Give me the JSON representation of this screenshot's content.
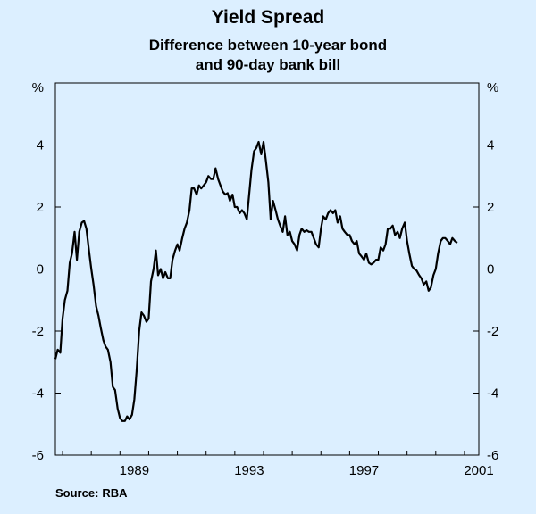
{
  "chart_data": {
    "type": "line",
    "title": "Yield Spread",
    "subtitle": "Difference between 10-year bond and 90-day bank bill",
    "y_unit_left": "%",
    "y_unit_right": "%",
    "ylim": [
      -6,
      6
    ],
    "y_ticks": [
      -6,
      -4,
      -2,
      0,
      2,
      4
    ],
    "xlim": [
      1986.75,
      2001.5
    ],
    "x_ticks": [
      1989,
      1993,
      1997,
      2001
    ],
    "x_tick_labels": [
      "1989",
      "1993",
      "1997",
      "2001"
    ],
    "grid": false,
    "legend": "none",
    "line_color": "#000000",
    "series": [
      {
        "values": [
          [
            1986.75,
            -2.9
          ],
          [
            1986.83,
            -2.6
          ],
          [
            1986.92,
            -2.7
          ],
          [
            1987.0,
            -1.6
          ],
          [
            1987.08,
            -1.0
          ],
          [
            1987.17,
            -0.7
          ],
          [
            1987.25,
            0.2
          ],
          [
            1987.33,
            0.5
          ],
          [
            1987.42,
            1.2
          ],
          [
            1987.5,
            0.3
          ],
          [
            1987.58,
            1.2
          ],
          [
            1987.67,
            1.5
          ],
          [
            1987.75,
            1.55
          ],
          [
            1987.83,
            1.3
          ],
          [
            1987.92,
            0.6
          ],
          [
            1988.0,
            0.0
          ],
          [
            1988.08,
            -0.5
          ],
          [
            1988.17,
            -1.2
          ],
          [
            1988.25,
            -1.5
          ],
          [
            1988.33,
            -1.9
          ],
          [
            1988.42,
            -2.3
          ],
          [
            1988.5,
            -2.5
          ],
          [
            1988.58,
            -2.6
          ],
          [
            1988.67,
            -3.0
          ],
          [
            1988.75,
            -3.8
          ],
          [
            1988.83,
            -3.9
          ],
          [
            1988.92,
            -4.5
          ],
          [
            1989.0,
            -4.8
          ],
          [
            1989.08,
            -4.9
          ],
          [
            1989.17,
            -4.9
          ],
          [
            1989.25,
            -4.75
          ],
          [
            1989.33,
            -4.85
          ],
          [
            1989.42,
            -4.7
          ],
          [
            1989.5,
            -4.2
          ],
          [
            1989.58,
            -3.3
          ],
          [
            1989.67,
            -2.0
          ],
          [
            1989.75,
            -1.4
          ],
          [
            1989.83,
            -1.5
          ],
          [
            1989.92,
            -1.7
          ],
          [
            1990.0,
            -1.6
          ],
          [
            1990.08,
            -0.4
          ],
          [
            1990.17,
            0.0
          ],
          [
            1990.25,
            0.6
          ],
          [
            1990.33,
            -0.2
          ],
          [
            1990.42,
            0.0
          ],
          [
            1990.5,
            -0.3
          ],
          [
            1990.58,
            -0.1
          ],
          [
            1990.67,
            -0.3
          ],
          [
            1990.75,
            -0.3
          ],
          [
            1990.83,
            0.3
          ],
          [
            1990.92,
            0.6
          ],
          [
            1991.0,
            0.8
          ],
          [
            1991.08,
            0.6
          ],
          [
            1991.17,
            1.0
          ],
          [
            1991.25,
            1.3
          ],
          [
            1991.33,
            1.5
          ],
          [
            1991.42,
            1.9
          ],
          [
            1991.5,
            2.6
          ],
          [
            1991.58,
            2.6
          ],
          [
            1991.67,
            2.4
          ],
          [
            1991.75,
            2.7
          ],
          [
            1991.83,
            2.6
          ],
          [
            1991.92,
            2.7
          ],
          [
            1992.0,
            2.8
          ],
          [
            1992.08,
            3.0
          ],
          [
            1992.17,
            2.9
          ],
          [
            1992.25,
            2.9
          ],
          [
            1992.33,
            3.25
          ],
          [
            1992.42,
            2.9
          ],
          [
            1992.5,
            2.7
          ],
          [
            1992.58,
            2.5
          ],
          [
            1992.67,
            2.4
          ],
          [
            1992.75,
            2.45
          ],
          [
            1992.83,
            2.2
          ],
          [
            1992.92,
            2.4
          ],
          [
            1993.0,
            2.0
          ],
          [
            1993.08,
            2.0
          ],
          [
            1993.17,
            1.8
          ],
          [
            1993.25,
            1.9
          ],
          [
            1993.33,
            1.8
          ],
          [
            1993.42,
            1.6
          ],
          [
            1993.5,
            2.4
          ],
          [
            1993.58,
            3.2
          ],
          [
            1993.67,
            3.8
          ],
          [
            1993.75,
            3.9
          ],
          [
            1993.83,
            4.1
          ],
          [
            1993.92,
            3.7
          ],
          [
            1994.0,
            4.1
          ],
          [
            1994.08,
            3.5
          ],
          [
            1994.17,
            2.8
          ],
          [
            1994.25,
            1.6
          ],
          [
            1994.33,
            2.2
          ],
          [
            1994.42,
            1.9
          ],
          [
            1994.5,
            1.6
          ],
          [
            1994.58,
            1.4
          ],
          [
            1994.67,
            1.2
          ],
          [
            1994.75,
            1.7
          ],
          [
            1994.83,
            1.1
          ],
          [
            1994.92,
            1.2
          ],
          [
            1995.0,
            0.9
          ],
          [
            1995.08,
            0.8
          ],
          [
            1995.17,
            0.6
          ],
          [
            1995.25,
            1.1
          ],
          [
            1995.33,
            1.3
          ],
          [
            1995.42,
            1.2
          ],
          [
            1995.5,
            1.25
          ],
          [
            1995.58,
            1.2
          ],
          [
            1995.67,
            1.2
          ],
          [
            1995.75,
            1.0
          ],
          [
            1995.83,
            0.8
          ],
          [
            1995.92,
            0.7
          ],
          [
            1996.0,
            1.3
          ],
          [
            1996.08,
            1.7
          ],
          [
            1996.17,
            1.6
          ],
          [
            1996.25,
            1.8
          ],
          [
            1996.33,
            1.9
          ],
          [
            1996.42,
            1.8
          ],
          [
            1996.5,
            1.9
          ],
          [
            1996.58,
            1.5
          ],
          [
            1996.67,
            1.7
          ],
          [
            1996.75,
            1.3
          ],
          [
            1996.83,
            1.2
          ],
          [
            1996.92,
            1.1
          ],
          [
            1997.0,
            1.1
          ],
          [
            1997.08,
            0.9
          ],
          [
            1997.17,
            0.8
          ],
          [
            1997.25,
            0.9
          ],
          [
            1997.33,
            0.5
          ],
          [
            1997.42,
            0.4
          ],
          [
            1997.5,
            0.3
          ],
          [
            1997.58,
            0.5
          ],
          [
            1997.67,
            0.2
          ],
          [
            1997.75,
            0.15
          ],
          [
            1997.83,
            0.2
          ],
          [
            1997.92,
            0.3
          ],
          [
            1998.0,
            0.3
          ],
          [
            1998.08,
            0.7
          ],
          [
            1998.17,
            0.6
          ],
          [
            1998.25,
            0.8
          ],
          [
            1998.33,
            1.3
          ],
          [
            1998.42,
            1.3
          ],
          [
            1998.5,
            1.4
          ],
          [
            1998.58,
            1.1
          ],
          [
            1998.67,
            1.2
          ],
          [
            1998.75,
            1.0
          ],
          [
            1998.83,
            1.3
          ],
          [
            1998.92,
            1.5
          ],
          [
            1999.0,
            0.9
          ],
          [
            1999.08,
            0.5
          ],
          [
            1999.17,
            0.1
          ],
          [
            1999.25,
            0.0
          ],
          [
            1999.33,
            -0.05
          ],
          [
            1999.42,
            -0.2
          ],
          [
            1999.5,
            -0.3
          ],
          [
            1999.58,
            -0.5
          ],
          [
            1999.67,
            -0.4
          ],
          [
            1999.75,
            -0.7
          ],
          [
            1999.83,
            -0.6
          ],
          [
            1999.92,
            -0.2
          ],
          [
            2000.0,
            0.0
          ],
          [
            2000.08,
            0.5
          ],
          [
            2000.17,
            0.9
          ],
          [
            2000.25,
            1.0
          ],
          [
            2000.33,
            1.0
          ],
          [
            2000.42,
            0.9
          ],
          [
            2000.5,
            0.8
          ],
          [
            2000.58,
            1.0
          ],
          [
            2000.67,
            0.9
          ],
          [
            2000.75,
            0.85
          ]
        ]
      }
    ]
  },
  "source": {
    "label": "Source:",
    "value": "RBA"
  }
}
